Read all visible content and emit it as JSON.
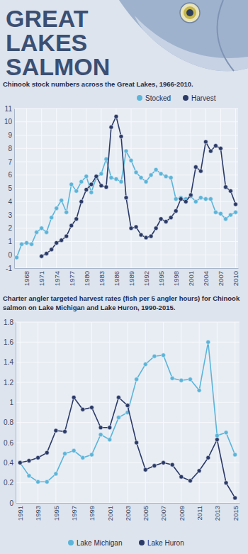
{
  "title": "GREAT LAKES SALMON",
  "chart_data": [
    {
      "type": "line",
      "title": "Chinook stock numbers across the Great Lakes, 1966-2010.",
      "x": [
        1966,
        1967,
        1968,
        1969,
        1970,
        1971,
        1972,
        1973,
        1974,
        1975,
        1976,
        1977,
        1978,
        1979,
        1980,
        1981,
        1982,
        1983,
        1984,
        1985,
        1986,
        1987,
        1988,
        1989,
        1990,
        1991,
        1992,
        1993,
        1994,
        1995,
        1996,
        1997,
        1998,
        1999,
        2000,
        2001,
        2002,
        2003,
        2004,
        2005,
        2006,
        2007,
        2008,
        2009,
        2010
      ],
      "series": [
        {
          "name": "Stocked",
          "color": "#5bb5d9",
          "marker": "circle",
          "values": [
            -0.2,
            0.8,
            0.9,
            0.8,
            1.7,
            2.0,
            1.7,
            2.8,
            3.5,
            4.1,
            3.2,
            5.3,
            4.8,
            5.5,
            5.9,
            4.7,
            5.8,
            6.1,
            7.2,
            5.8,
            5.7,
            5.5,
            7.8,
            7.1,
            6.2,
            5.8,
            5.5,
            6.0,
            6.4,
            6.1,
            5.9,
            5.8,
            4.2,
            4.3,
            4.2,
            4.4,
            4.0,
            4.3,
            4.2,
            4.2,
            3.2,
            3.1,
            2.7,
            3.0,
            3.2
          ]
        },
        {
          "name": "Harvest",
          "color": "#2b3a67",
          "marker": "circle",
          "values": [
            null,
            null,
            null,
            null,
            null,
            -0.1,
            0.1,
            0.4,
            0.9,
            1.1,
            1.4,
            2.2,
            2.7,
            4.0,
            4.9,
            5.3,
            5.9,
            5.2,
            5.1,
            9.6,
            10.4,
            8.9,
            4.3,
            2.0,
            2.1,
            1.5,
            1.3,
            1.4,
            2.0,
            2.7,
            2.5,
            2.8,
            3.3,
            4.2,
            4.0,
            4.5,
            6.6,
            6.3,
            8.5,
            7.8,
            8.2,
            8.0,
            5.1,
            4.8,
            3.8
          ]
        }
      ],
      "xlim": [
        1965.5,
        2010.5
      ],
      "xticks": [
        1968,
        1971,
        1974,
        1977,
        1980,
        1983,
        1986,
        1989,
        1992,
        1995,
        1998,
        2001,
        2004,
        2007,
        2010
      ],
      "ylim": [
        -1,
        11
      ],
      "yticks": [
        -1,
        0,
        1,
        2,
        3,
        4,
        5,
        6,
        7,
        8,
        9,
        10,
        11
      ],
      "grid": true,
      "legend": "top right"
    },
    {
      "type": "line",
      "title": "Charter angler targeted harvest rates (fish per 5 angler hours) for Chinook salmon on Lake Michigan and Lake Huron, 1990-2015.",
      "x": [
        1991,
        1992,
        1993,
        1994,
        1995,
        1996,
        1997,
        1998,
        1999,
        2000,
        2001,
        2002,
        2003,
        2004,
        2005,
        2006,
        2007,
        2008,
        2009,
        2010,
        2011,
        2012,
        2013,
        2014,
        2015
      ],
      "series": [
        {
          "name": "Lake Michigan",
          "color": "#5bb5d9",
          "marker": "circle",
          "values": [
            0.4,
            0.27,
            0.21,
            0.21,
            0.29,
            0.49,
            0.52,
            0.45,
            0.48,
            0.68,
            0.63,
            0.85,
            0.9,
            1.23,
            1.38,
            1.46,
            1.47,
            1.24,
            1.22,
            1.23,
            1.12,
            1.6,
            0.67,
            0.7,
            0.48
          ]
        },
        {
          "name": "Lake Huron",
          "color": "#2b3a67",
          "marker": "circle",
          "values": [
            0.4,
            0.42,
            0.45,
            0.5,
            0.72,
            0.71,
            1.05,
            0.93,
            0.95,
            0.75,
            0.75,
            1.05,
            0.97,
            0.6,
            0.33,
            0.37,
            0.4,
            0.38,
            0.26,
            0.22,
            0.32,
            0.45,
            0.63,
            0.2,
            0.05
          ]
        }
      ],
      "xlim": [
        1990.5,
        2015.5
      ],
      "xticks": [
        1991,
        1993,
        1995,
        1997,
        1999,
        2001,
        2003,
        2005,
        2007,
        2009,
        2011,
        2013,
        2015
      ],
      "ylim": [
        0,
        1.8
      ],
      "yticks": [
        0,
        0.2,
        0.4,
        0.6,
        0.8,
        1,
        1.2,
        1.4,
        1.6,
        1.8
      ],
      "grid": true,
      "legend": "bottom"
    }
  ]
}
